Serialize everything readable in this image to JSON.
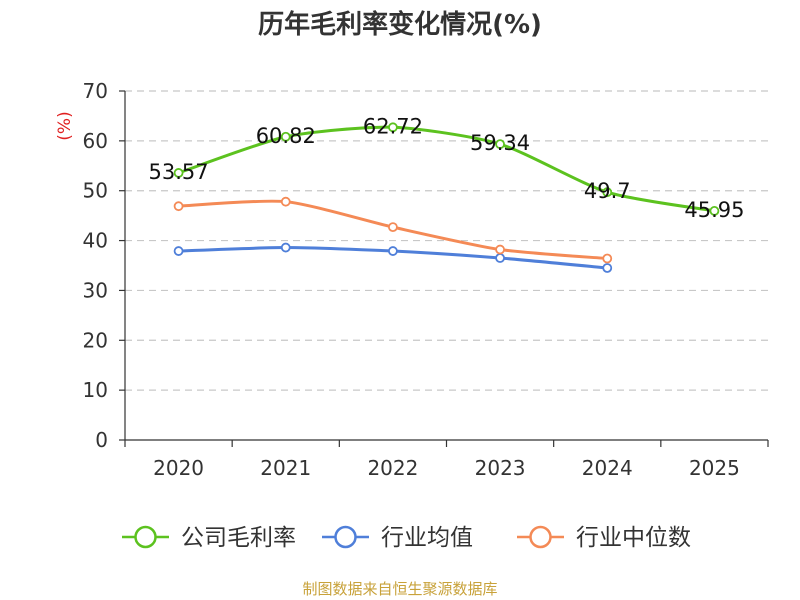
{
  "chart_data": {
    "type": "line",
    "title": "历年毛利率变化情况(%)",
    "ylabel": "(%)",
    "xlabel": "",
    "categories": [
      "2020",
      "2021",
      "2022",
      "2023",
      "2024",
      "2025"
    ],
    "ylim": [
      0,
      70
    ],
    "yticks": [
      0,
      10,
      20,
      30,
      40,
      50,
      60,
      70
    ],
    "grid": true,
    "legend_position": "bottom",
    "series": [
      {
        "name": "公司毛利率",
        "color": "#5cc21f",
        "values": [
          53.57,
          60.82,
          62.72,
          59.34,
          49.7,
          45.95
        ],
        "labels": [
          "53.57",
          "60.82",
          "62.72",
          "59.34",
          "49.7",
          "45.95"
        ]
      },
      {
        "name": "行业均值",
        "color": "#4f7fd9",
        "values": [
          37.9,
          38.6,
          37.9,
          36.5,
          34.5,
          null
        ]
      },
      {
        "name": "行业中位数",
        "color": "#f48a56",
        "values": [
          46.9,
          47.8,
          42.7,
          38.2,
          36.4,
          null
        ]
      }
    ]
  },
  "footer": "制图数据来自恒生聚源数据库"
}
